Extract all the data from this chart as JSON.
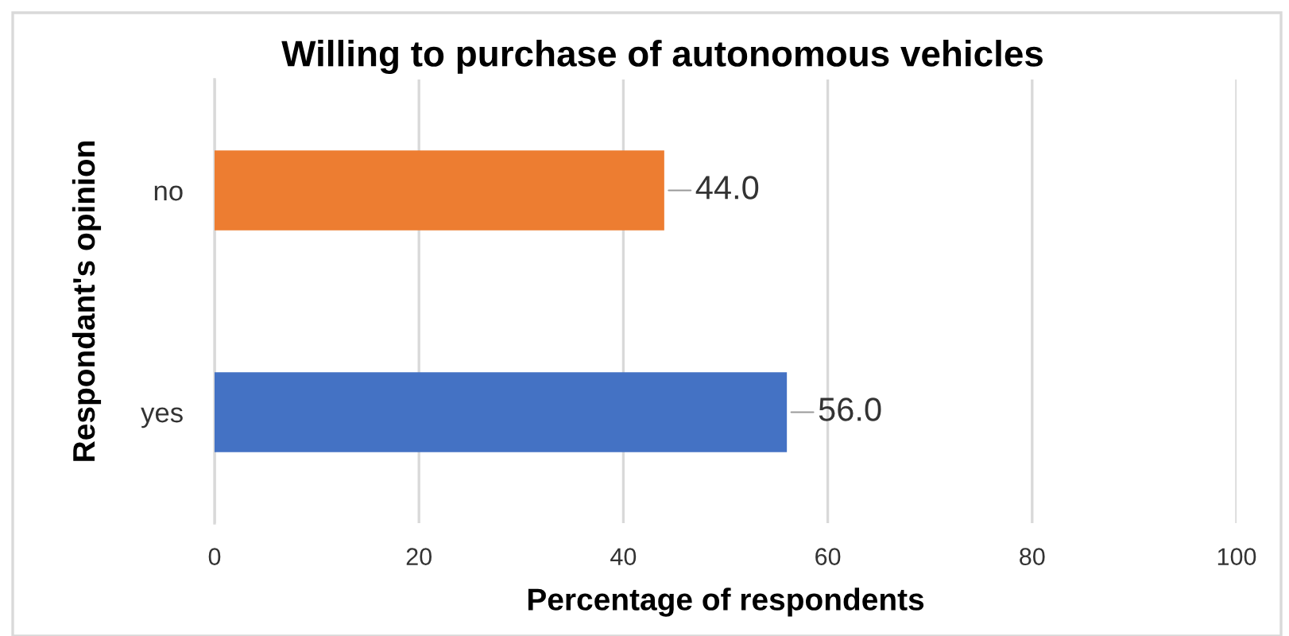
{
  "chart_data": {
    "type": "bar",
    "orientation": "horizontal",
    "title": "Willing to purchase of autonomous vehicles",
    "xlabel": "Percentage of respondents",
    "ylabel": "Respondant's opinion",
    "categories": [
      "no",
      "yes"
    ],
    "values": [
      44.0,
      56.0
    ],
    "colors": [
      "#ed7d31",
      "#4472c4"
    ],
    "value_labels": [
      "44.0",
      "56.0"
    ],
    "xlim": [
      0,
      100
    ],
    "xticks": [
      0,
      20,
      40,
      60,
      80,
      100
    ],
    "grid": "x",
    "legend": false
  }
}
